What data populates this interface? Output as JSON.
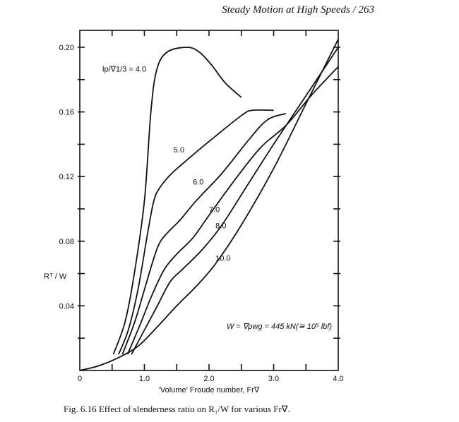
{
  "page_header": "Steady Motion at High Speeds  /  263",
  "caption": "Fig. 6.16  Effect of slenderness ratio on R₁/W for various Fr∇.",
  "chart_data": {
    "type": "line",
    "title": "",
    "xlabel": "'Volume' Froude number, Fr∇",
    "ylabel": "Rᵀ / W",
    "xlim": [
      0,
      4.0
    ],
    "ylim": [
      0,
      0.21
    ],
    "x_ticks": [
      "0",
      "1.0",
      "2.0",
      "3.0",
      "4.0"
    ],
    "x_tick_values": [
      0,
      1,
      2,
      3,
      4
    ],
    "y_ticks": [
      "0.04",
      "0.08",
      "0.12",
      "0.16",
      "0.20"
    ],
    "y_tick_values": [
      0.04,
      0.08,
      0.12,
      0.16,
      0.2
    ],
    "grid": false,
    "annotation": "W = ∇ρwg = 445 kN(≅ 10⁵ lbf)",
    "series_label_prefix": "lp/∇1/3 = ",
    "series": [
      {
        "name": "4.0",
        "points": [
          [
            0.52,
            0.01
          ],
          [
            0.7,
            0.03
          ],
          [
            0.84,
            0.059
          ],
          [
            1.0,
            0.105
          ],
          [
            1.1,
            0.16
          ],
          [
            1.19,
            0.186
          ],
          [
            1.35,
            0.197
          ],
          [
            1.66,
            0.2
          ],
          [
            1.85,
            0.197
          ],
          [
            2.04,
            0.189
          ],
          [
            2.25,
            0.178
          ],
          [
            2.5,
            0.169
          ]
        ]
      },
      {
        "name": "5.0",
        "points": [
          [
            0.6,
            0.01
          ],
          [
            0.75,
            0.025
          ],
          [
            0.9,
            0.05
          ],
          [
            1.05,
            0.085
          ],
          [
            1.14,
            0.104
          ],
          [
            1.22,
            0.112
          ],
          [
            1.4,
            0.121
          ],
          [
            1.68,
            0.131
          ],
          [
            2.1,
            0.145
          ],
          [
            2.51,
            0.158
          ],
          [
            2.67,
            0.161
          ],
          [
            3.0,
            0.161
          ]
        ]
      },
      {
        "name": "6.0",
        "points": [
          [
            0.66,
            0.01
          ],
          [
            0.85,
            0.03
          ],
          [
            1.0,
            0.05
          ],
          [
            1.15,
            0.07
          ],
          [
            1.25,
            0.08
          ],
          [
            1.4,
            0.087
          ],
          [
            1.55,
            0.093
          ],
          [
            1.8,
            0.105
          ],
          [
            2.2,
            0.122
          ],
          [
            2.6,
            0.142
          ],
          [
            2.9,
            0.155
          ],
          [
            3.19,
            0.159
          ]
        ]
      },
      {
        "name": "7.0",
        "points": [
          [
            0.74,
            0.01
          ],
          [
            0.95,
            0.03
          ],
          [
            1.1,
            0.045
          ],
          [
            1.3,
            0.062
          ],
          [
            1.5,
            0.072
          ],
          [
            1.75,
            0.082
          ],
          [
            2.0,
            0.096
          ],
          [
            2.4,
            0.118
          ],
          [
            2.8,
            0.138
          ],
          [
            3.2,
            0.152
          ],
          [
            3.6,
            0.171
          ],
          [
            4.0,
            0.188
          ]
        ]
      },
      {
        "name": "8.0",
        "points": [
          [
            0.8,
            0.01
          ],
          [
            1.0,
            0.025
          ],
          [
            1.2,
            0.04
          ],
          [
            1.4,
            0.055
          ],
          [
            1.6,
            0.063
          ],
          [
            1.9,
            0.075
          ],
          [
            2.2,
            0.09
          ],
          [
            2.6,
            0.115
          ],
          [
            3.0,
            0.14
          ],
          [
            3.5,
            0.17
          ],
          [
            4.0,
            0.2
          ]
        ]
      },
      {
        "name": "10.0",
        "points": [
          [
            0,
            0
          ],
          [
            0.3,
            0.003
          ],
          [
            0.6,
            0.008
          ],
          [
            0.9,
            0.015
          ],
          [
            1.2,
            0.027
          ],
          [
            1.5,
            0.04
          ],
          [
            1.8,
            0.052
          ],
          [
            2.1,
            0.066
          ],
          [
            2.5,
            0.09
          ],
          [
            3.0,
            0.125
          ],
          [
            3.5,
            0.165
          ],
          [
            4.0,
            0.205
          ]
        ]
      }
    ],
    "series_labels": [
      {
        "text": "lp/∇1/3 = 4.0",
        "at": [
          0.35,
          0.185
        ]
      },
      {
        "text": "5.0",
        "at": [
          1.45,
          0.135
        ]
      },
      {
        "text": "6.0",
        "at": [
          1.75,
          0.115
        ]
      },
      {
        "text": "7.0",
        "at": [
          2.0,
          0.098
        ]
      },
      {
        "text": "8.0",
        "at": [
          2.1,
          0.088
        ]
      },
      {
        "text": "10.0",
        "at": [
          2.1,
          0.068
        ]
      }
    ],
    "line_color": "#111111"
  }
}
